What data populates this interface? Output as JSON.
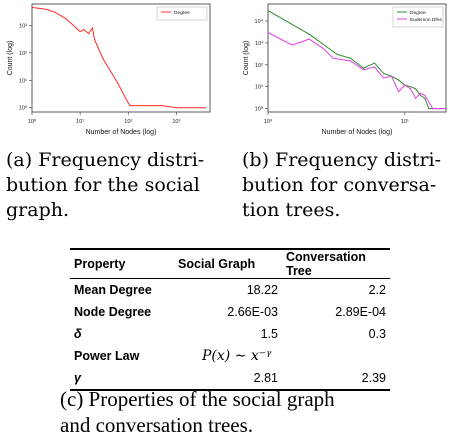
{
  "figure_a": {
    "caption": "(a) Frequency distribution for the social graph.",
    "caption_lines": [
      "(a) Frequency distri-",
      "bution for the social",
      "graph."
    ],
    "ticks_x": [
      "10⁰",
      "10¹",
      "10²",
      "10³"
    ],
    "ticks_y": [
      "10⁰",
      "10¹",
      "10²",
      "10³"
    ],
    "chart_data": {
      "type": "line",
      "xlabel": "Number of Nodes (log)",
      "ylabel": "Count (log)",
      "x_scale": "log",
      "y_scale": "log",
      "xlim": [
        1,
        5000
      ],
      "ylim": [
        0.7,
        6000
      ],
      "legend_position": "top-right",
      "series": [
        {
          "name": "Degree",
          "color": "#ff2a2a",
          "x": [
            1,
            2,
            3,
            5,
            10,
            12,
            15,
            18,
            20,
            30,
            60,
            100,
            110,
            200,
            500,
            1000,
            4000
          ],
          "y": [
            4500,
            3800,
            3000,
            1800,
            600,
            700,
            500,
            800,
            300,
            60,
            8,
            1.5,
            1.2,
            1.2,
            1.2,
            1,
            1
          ]
        }
      ]
    }
  },
  "figure_b": {
    "caption": "(b) Frequency distribution for conversation trees.",
    "caption_lines": [
      "(b) Frequency distri-",
      "bution for conversa-",
      "tion trees."
    ],
    "ticks_x": [
      "10⁰",
      "10¹"
    ],
    "ticks_y": [
      "10⁰",
      "10¹",
      "10²",
      "10³",
      "10⁴"
    ],
    "chart_data": {
      "type": "line",
      "xlabel": "Number of Nodes (log)",
      "ylabel": "Count (log)",
      "x_scale": "log",
      "y_scale": "log",
      "xlim": [
        1,
        20
      ],
      "ylim": [
        0.7,
        60000
      ],
      "legend_position": "top-right",
      "series": [
        {
          "name": "Degree",
          "color": "#2e8b2e",
          "x": [
            1,
            2,
            3,
            3.2,
            4,
            5,
            6,
            7,
            8,
            9,
            10,
            11,
            12,
            13,
            14,
            15,
            20
          ],
          "y": [
            30000,
            2500,
            400,
            300,
            200,
            70,
            120,
            40,
            30,
            20,
            12,
            10,
            8,
            4,
            3,
            1,
            1
          ]
        },
        {
          "name": "Eudemon Dfns",
          "color": "#e040e0",
          "x": [
            1,
            1.5,
            2,
            2.5,
            3,
            4,
            5,
            6,
            7,
            8,
            9,
            10,
            11,
            12,
            13,
            14,
            15,
            16,
            20
          ],
          "y": [
            3000,
            800,
            1500,
            600,
            200,
            150,
            60,
            80,
            25,
            30,
            6,
            12,
            8,
            3,
            5,
            4,
            2,
            1,
            1
          ]
        }
      ]
    }
  },
  "table": {
    "headers": [
      "Property",
      "Social Graph",
      "Conversation Tree"
    ],
    "rows": [
      {
        "label": "Mean Degree",
        "social": "18.22",
        "tree": "2.2"
      },
      {
        "label": "Node Degree",
        "social": "2.66E-03",
        "tree": "2.89E-04"
      },
      {
        "label": "δ",
        "social": "1.5",
        "tree": "0.3"
      },
      {
        "label": "Power Law",
        "formula": "P(x) ∼ x⁻ᵞ"
      },
      {
        "label": "γ",
        "social": "2.81",
        "tree": "2.39"
      }
    ],
    "caption_lines": [
      "(c) Properties of the social graph",
      "and conversation trees."
    ]
  }
}
